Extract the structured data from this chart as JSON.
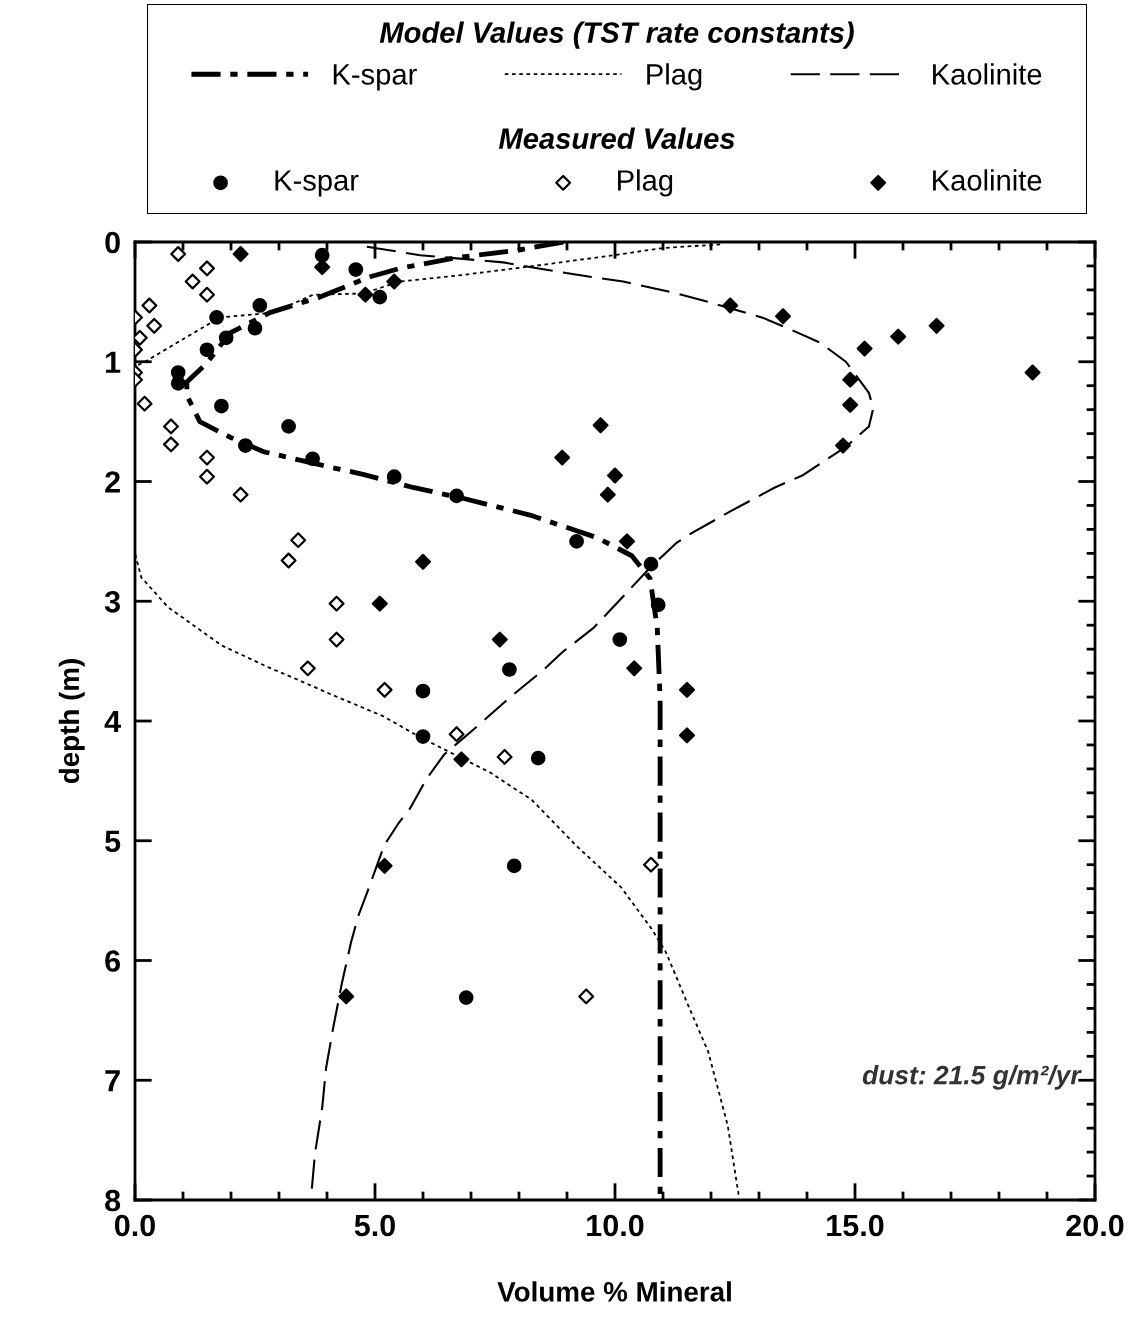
{
  "chart_data": {
    "type": "line",
    "xlabel": "Volume % Mineral",
    "ylabel": "depth (m)",
    "legend_title": "Model Values (TST rate constants)",
    "annotations": [
      "Measured Values",
      "dust: 21.5 g/m²/yr"
    ],
    "xlim": [
      0,
      20
    ],
    "xticks": [
      {
        "value": 0,
        "label": "0.0"
      },
      {
        "value": 5,
        "label": "5.0"
      },
      {
        "value": 10,
        "label": "10.0"
      },
      {
        "value": 15,
        "label": "15.0"
      },
      {
        "value": 20,
        "label": "20.0"
      }
    ],
    "ylim": [
      8,
      0
    ],
    "yticks": [
      0,
      1,
      2,
      3,
      4,
      5,
      6,
      7,
      8
    ],
    "grid": false,
    "legend": "top",
    "series": [
      {
        "name": "K-spar",
        "line_style": "dashdot",
        "color": "#000000",
        "x": [
          8.92,
          7.96,
          6.71,
          5.52,
          4.9,
          3.85,
          2.81,
          1.98,
          1.5,
          1.08,
          1.08,
          1.35,
          1.98,
          2.67,
          4.06,
          4.75,
          5.79,
          6.83,
          8.23,
          9.63,
          10.35,
          10.73,
          10.88,
          10.94,
          10.94
        ],
        "values": [
          0.0,
          0.07,
          0.13,
          0.22,
          0.29,
          0.46,
          0.59,
          0.76,
          1.01,
          1.17,
          1.28,
          1.5,
          1.63,
          1.75,
          1.88,
          1.94,
          2.05,
          2.14,
          2.28,
          2.47,
          2.62,
          2.81,
          3.22,
          3.82,
          8.0
        ]
      },
      {
        "name": "Plag",
        "line_style": "dotted",
        "color": "#000000",
        "x": [
          12.19,
          11.0,
          9.98,
          8.31,
          6.73,
          5.52,
          4.75,
          3.71,
          2.88,
          1.77,
          0.88,
          0.25,
          0.0,
          0.0,
          0.13,
          0.69,
          1.81,
          2.77,
          3.42,
          4.04,
          5.17,
          5.96,
          7.4,
          8.27,
          9.19,
          10.13,
          10.77,
          11.06,
          11.52,
          11.94,
          12.35,
          12.58
        ],
        "values": [
          0.02,
          0.05,
          0.11,
          0.2,
          0.28,
          0.33,
          0.43,
          0.44,
          0.59,
          0.63,
          0.84,
          0.99,
          1.04,
          2.6,
          2.8,
          3.05,
          3.37,
          3.55,
          3.66,
          3.77,
          3.96,
          4.14,
          4.43,
          4.66,
          5.04,
          5.39,
          5.74,
          5.93,
          6.37,
          6.76,
          7.38,
          7.97
        ]
      },
      {
        "name": "Kaolinite",
        "line_style": "dashed",
        "color": "#000000",
        "x": [
          4.83,
          5.94,
          7.67,
          8.38,
          9.48,
          10.17,
          11.29,
          11.94,
          13.06,
          13.71,
          14.27,
          14.81,
          15.29,
          15.38,
          15.29,
          14.81,
          13.9,
          13.33,
          12.4,
          11.56,
          11.29,
          10.73,
          9.56,
          8.92,
          8.52,
          7.79,
          7.17,
          6.44,
          6.08,
          5.73,
          5.48,
          5.19,
          4.83,
          4.65,
          4.5,
          4.31,
          4.13,
          3.98,
          3.9,
          3.75,
          3.67
        ],
        "values": [
          0.04,
          0.11,
          0.17,
          0.22,
          0.29,
          0.33,
          0.43,
          0.5,
          0.63,
          0.74,
          0.84,
          1.0,
          1.26,
          1.39,
          1.54,
          1.71,
          1.95,
          2.05,
          2.25,
          2.44,
          2.51,
          2.72,
          3.22,
          3.42,
          3.57,
          3.81,
          4.03,
          4.28,
          4.48,
          4.73,
          4.86,
          5.04,
          5.44,
          5.63,
          5.85,
          6.19,
          6.56,
          6.9,
          7.23,
          7.61,
          7.97
        ]
      },
      {
        "name": "K-spar",
        "type": "scatter",
        "marker": "circle",
        "color": "#000000",
        "x": [
          3.9,
          4.6,
          5.1,
          2.6,
          1.7,
          2.5,
          1.9,
          1.5,
          0.9,
          0.9,
          1.8,
          3.2,
          2.3,
          3.7,
          5.4,
          6.7,
          9.2,
          10.75,
          10.9,
          10.1,
          7.8,
          6.0,
          6.0,
          8.4,
          7.9,
          6.9
        ],
        "values": [
          0.11,
          0.23,
          0.46,
          0.53,
          0.63,
          0.72,
          0.8,
          0.9,
          1.09,
          1.18,
          1.37,
          1.54,
          1.7,
          1.81,
          1.96,
          2.12,
          2.5,
          2.69,
          3.03,
          3.32,
          3.57,
          3.75,
          4.13,
          4.31,
          5.21,
          6.31
        ]
      },
      {
        "name": "Plag",
        "type": "scatter",
        "marker": "diamond",
        "color": "#ffffff",
        "x": [
          0.9,
          1.5,
          1.2,
          1.5,
          0.3,
          0.0,
          0.4,
          0.1,
          0.0,
          0.0,
          0.0,
          0.2,
          0.75,
          0.75,
          1.5,
          1.5,
          2.2,
          3.4,
          3.2,
          4.2,
          4.2,
          3.6,
          5.2,
          6.7,
          7.7,
          10.75,
          9.4
        ],
        "values": [
          0.1,
          0.22,
          0.33,
          0.44,
          0.53,
          0.63,
          0.7,
          0.8,
          0.9,
          1.09,
          1.15,
          1.35,
          1.54,
          1.69,
          1.8,
          1.96,
          2.11,
          2.49,
          2.66,
          3.02,
          3.32,
          3.56,
          3.74,
          4.11,
          4.3,
          5.2,
          6.3
        ]
      },
      {
        "name": "Kaolinite",
        "type": "scatter",
        "marker": "diamond",
        "color": "#000000",
        "x": [
          2.2,
          3.9,
          4.8,
          5.4,
          12.4,
          13.5,
          16.7,
          15.9,
          15.2,
          18.7,
          14.9,
          14.9,
          14.75,
          9.7,
          8.9,
          10.0,
          9.85,
          10.25,
          6.0,
          5.1,
          7.6,
          10.4,
          11.5,
          11.5,
          6.8,
          5.2,
          4.4
        ],
        "values": [
          0.1,
          0.21,
          0.44,
          0.33,
          0.53,
          0.62,
          0.7,
          0.79,
          0.89,
          1.09,
          1.15,
          1.36,
          1.7,
          1.53,
          1.8,
          1.95,
          2.11,
          2.5,
          2.67,
          3.02,
          3.32,
          3.56,
          3.74,
          4.12,
          4.32,
          5.21,
          6.3
        ]
      }
    ]
  }
}
